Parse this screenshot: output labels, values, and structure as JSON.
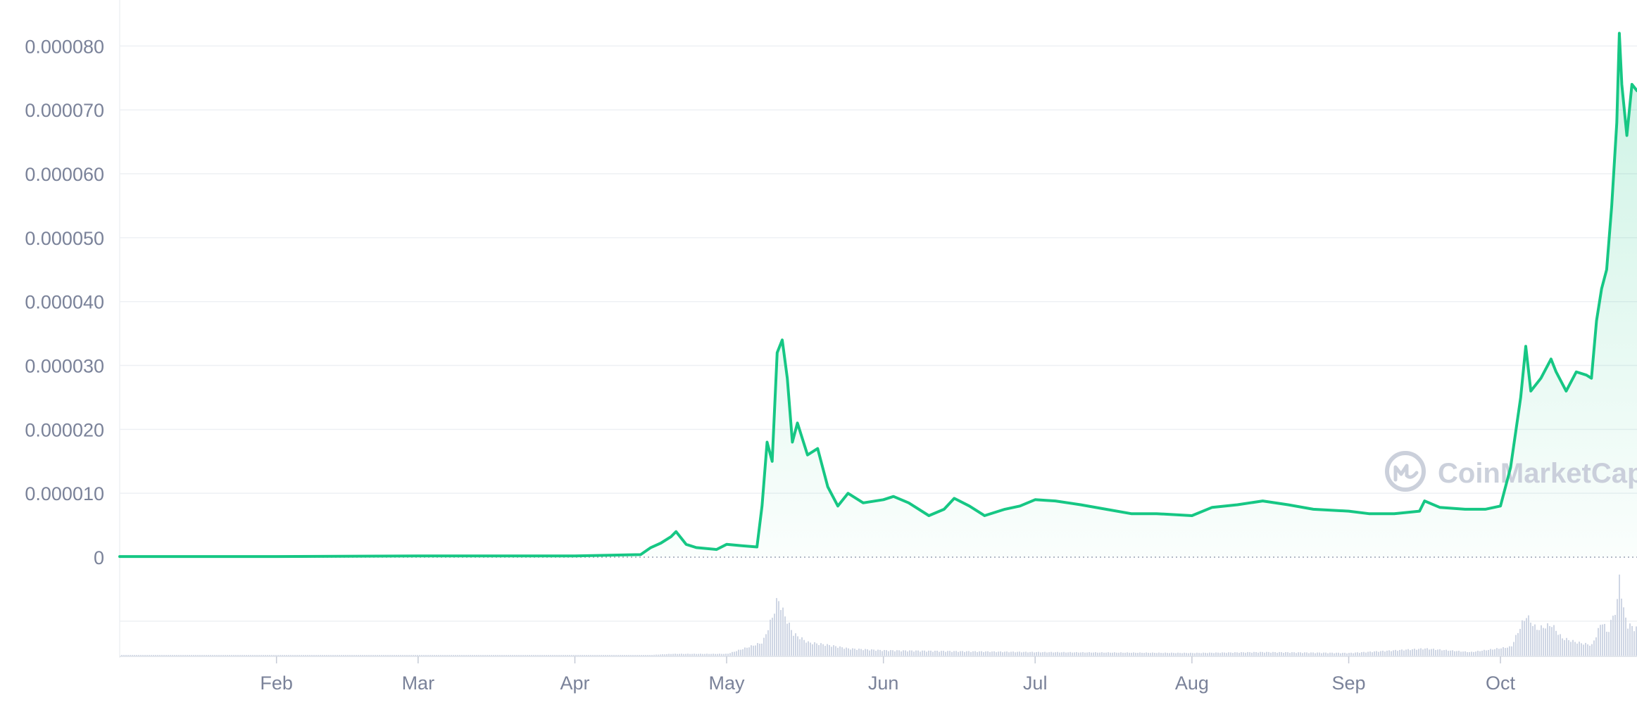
{
  "chart_data": {
    "type": "area",
    "title": "",
    "xlabel": "",
    "ylabel": "",
    "x_range": [
      "2021-01-01",
      "2021-10-28"
    ],
    "ylim": [
      0,
      8.5e-05
    ],
    "yticks": [
      {
        "value": 0,
        "label": "0"
      },
      {
        "value": 1e-05,
        "label": "0.000010"
      },
      {
        "value": 2e-05,
        "label": "0.000020"
      },
      {
        "value": 3e-05,
        "label": "0.000030"
      },
      {
        "value": 4e-05,
        "label": "0.000040"
      },
      {
        "value": 5e-05,
        "label": "0.000050"
      },
      {
        "value": 6e-05,
        "label": "0.000060"
      },
      {
        "value": 7e-05,
        "label": "0.000070"
      },
      {
        "value": 8e-05,
        "label": "0.000080"
      }
    ],
    "xticks": [
      {
        "date": "2021-02-01",
        "label": "Feb"
      },
      {
        "date": "2021-03-01",
        "label": "Mar"
      },
      {
        "date": "2021-04-01",
        "label": "Apr"
      },
      {
        "date": "2021-05-01",
        "label": "May"
      },
      {
        "date": "2021-06-01",
        "label": "Jun"
      },
      {
        "date": "2021-07-01",
        "label": "Jul"
      },
      {
        "date": "2021-08-01",
        "label": "Aug"
      },
      {
        "date": "2021-09-01",
        "label": "Sep"
      },
      {
        "date": "2021-10-01",
        "label": "Oct"
      }
    ],
    "grid": true,
    "legend": "none",
    "colors": {
      "line": "#16c784",
      "volume": "#cfd6e4",
      "grid": "#eef0f4",
      "axis_text": "#7a8299"
    },
    "series": [
      {
        "values": [
          [
            "2021-01-01",
            1e-07
          ],
          [
            "2021-02-01",
            1e-07
          ],
          [
            "2021-03-01",
            2e-07
          ],
          [
            "2021-04-01",
            2e-07
          ],
          [
            "2021-04-14",
            4e-07
          ],
          [
            "2021-04-16",
            1.5e-06
          ],
          [
            "2021-04-18",
            2.2e-06
          ],
          [
            "2021-04-20",
            3.2e-06
          ],
          [
            "2021-04-21",
            4e-06
          ],
          [
            "2021-04-23",
            2e-06
          ],
          [
            "2021-04-25",
            1.5e-06
          ],
          [
            "2021-04-29",
            1.2e-06
          ],
          [
            "2021-05-01",
            2e-06
          ],
          [
            "2021-05-04",
            1.8e-06
          ],
          [
            "2021-05-07",
            1.6e-06
          ],
          [
            "2021-05-08",
            8e-06
          ],
          [
            "2021-05-09",
            1.8e-05
          ],
          [
            "2021-05-10",
            1.5e-05
          ],
          [
            "2021-05-11",
            3.2e-05
          ],
          [
            "2021-05-12",
            3.4e-05
          ],
          [
            "2021-05-13",
            2.8e-05
          ],
          [
            "2021-05-14",
            1.8e-05
          ],
          [
            "2021-05-15",
            2.1e-05
          ],
          [
            "2021-05-17",
            1.6e-05
          ],
          [
            "2021-05-19",
            1.7e-05
          ],
          [
            "2021-05-21",
            1.1e-05
          ],
          [
            "2021-05-23",
            8e-06
          ],
          [
            "2021-05-25",
            1e-05
          ],
          [
            "2021-05-28",
            8.5e-06
          ],
          [
            "2021-06-01",
            9e-06
          ],
          [
            "2021-06-03",
            9.5e-06
          ],
          [
            "2021-06-06",
            8.5e-06
          ],
          [
            "2021-06-10",
            6.5e-06
          ],
          [
            "2021-06-13",
            7.5e-06
          ],
          [
            "2021-06-15",
            9.2e-06
          ],
          [
            "2021-06-18",
            8e-06
          ],
          [
            "2021-06-21",
            6.5e-06
          ],
          [
            "2021-06-25",
            7.5e-06
          ],
          [
            "2021-06-28",
            8e-06
          ],
          [
            "2021-07-01",
            9e-06
          ],
          [
            "2021-07-05",
            8.8e-06
          ],
          [
            "2021-07-10",
            8.2e-06
          ],
          [
            "2021-07-15",
            7.5e-06
          ],
          [
            "2021-07-20",
            6.8e-06
          ],
          [
            "2021-07-25",
            6.8e-06
          ],
          [
            "2021-08-01",
            6.5e-06
          ],
          [
            "2021-08-05",
            7.8e-06
          ],
          [
            "2021-08-10",
            8.2e-06
          ],
          [
            "2021-08-15",
            8.8e-06
          ],
          [
            "2021-08-20",
            8.2e-06
          ],
          [
            "2021-08-25",
            7.5e-06
          ],
          [
            "2021-09-01",
            7.2e-06
          ],
          [
            "2021-09-05",
            6.8e-06
          ],
          [
            "2021-09-10",
            6.8e-06
          ],
          [
            "2021-09-15",
            7.2e-06
          ],
          [
            "2021-09-16",
            8.8e-06
          ],
          [
            "2021-09-19",
            7.8e-06
          ],
          [
            "2021-09-24",
            7.5e-06
          ],
          [
            "2021-09-28",
            7.5e-06
          ],
          [
            "2021-10-01",
            8e-06
          ],
          [
            "2021-10-03",
            1.4e-05
          ],
          [
            "2021-10-05",
            2.5e-05
          ],
          [
            "2021-10-06",
            3.3e-05
          ],
          [
            "2021-10-07",
            2.6e-05
          ],
          [
            "2021-10-09",
            2.8e-05
          ],
          [
            "2021-10-11",
            3.1e-05
          ],
          [
            "2021-10-12",
            2.9e-05
          ],
          [
            "2021-10-14",
            2.6e-05
          ],
          [
            "2021-10-16",
            2.9e-05
          ],
          [
            "2021-10-18",
            2.85e-05
          ],
          [
            "2021-10-19",
            2.8e-05
          ],
          [
            "2021-10-20",
            3.7e-05
          ],
          [
            "2021-10-21",
            4.2e-05
          ],
          [
            "2021-10-22",
            4.5e-05
          ],
          [
            "2021-10-23",
            5.5e-05
          ],
          [
            "2021-10-24",
            6.8e-05
          ],
          [
            "2021-10-24T12",
            8.2e-05
          ],
          [
            "2021-10-25",
            7.4e-05
          ],
          [
            "2021-10-26",
            6.6e-05
          ],
          [
            "2021-10-27",
            7.4e-05
          ],
          [
            "2021-10-28",
            7.3e-05
          ]
        ]
      }
    ],
    "volume": [
      [
        "2021-01-01",
        0.002
      ],
      [
        "2021-04-15",
        0.005
      ],
      [
        "2021-04-20",
        0.02
      ],
      [
        "2021-05-01",
        0.02
      ],
      [
        "2021-05-08",
        0.15
      ],
      [
        "2021-05-10",
        0.45
      ],
      [
        "2021-05-11",
        0.65
      ],
      [
        "2021-05-12",
        0.5
      ],
      [
        "2021-05-14",
        0.25
      ],
      [
        "2021-05-17",
        0.15
      ],
      [
        "2021-05-21",
        0.12
      ],
      [
        "2021-05-25",
        0.08
      ],
      [
        "2021-06-01",
        0.06
      ],
      [
        "2021-06-15",
        0.05
      ],
      [
        "2021-07-01",
        0.04
      ],
      [
        "2021-08-01",
        0.03
      ],
      [
        "2021-08-15",
        0.04
      ],
      [
        "2021-09-01",
        0.03
      ],
      [
        "2021-09-16",
        0.08
      ],
      [
        "2021-09-25",
        0.04
      ],
      [
        "2021-10-03",
        0.1
      ],
      [
        "2021-10-05",
        0.35
      ],
      [
        "2021-10-06",
        0.45
      ],
      [
        "2021-10-08",
        0.3
      ],
      [
        "2021-10-11",
        0.35
      ],
      [
        "2021-10-13",
        0.2
      ],
      [
        "2021-10-16",
        0.15
      ],
      [
        "2021-10-19",
        0.12
      ],
      [
        "2021-10-21",
        0.4
      ],
      [
        "2021-10-22",
        0.25
      ],
      [
        "2021-10-24",
        0.6
      ],
      [
        "2021-10-24T12",
        1.0
      ],
      [
        "2021-10-25",
        0.55
      ],
      [
        "2021-10-26",
        0.35
      ],
      [
        "2021-10-28",
        0.3
      ]
    ]
  },
  "watermark": {
    "text": "CoinMarketCap",
    "icon": "coinmarketcap-logo-icon"
  }
}
